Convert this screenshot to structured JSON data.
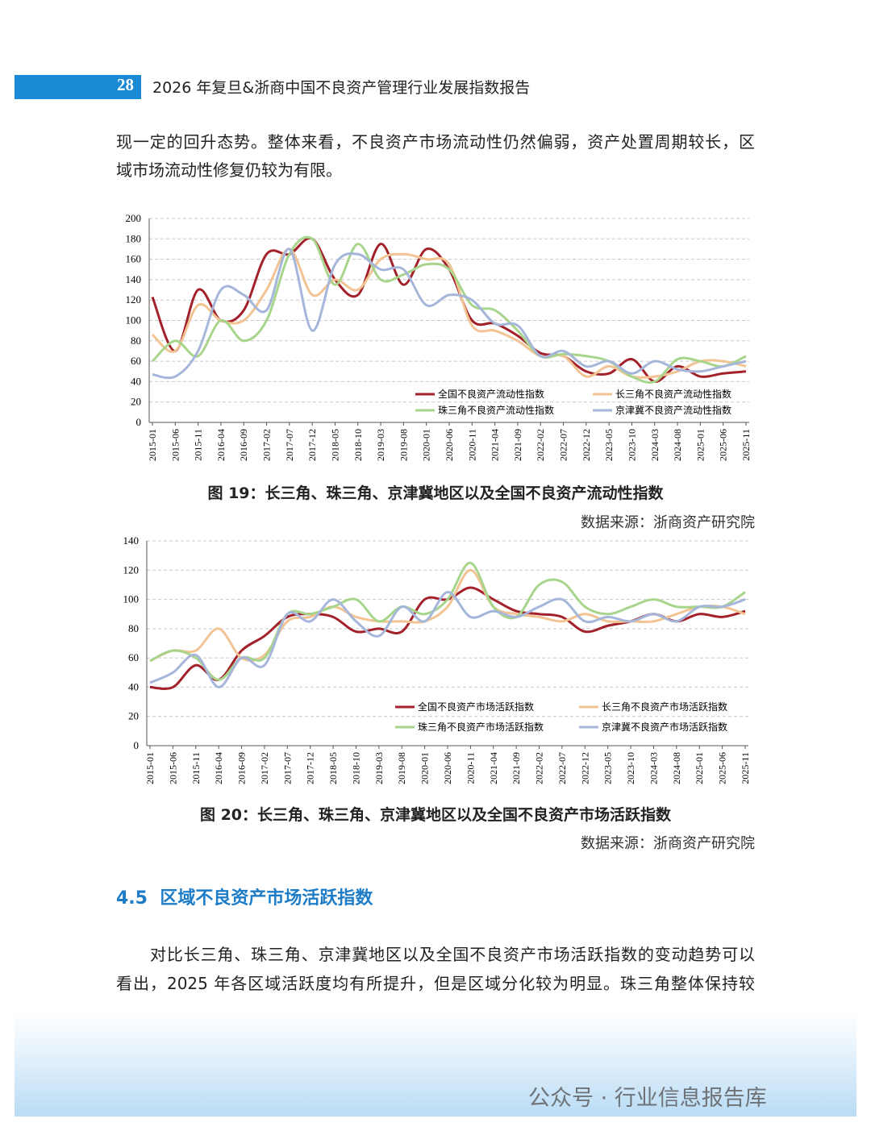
{
  "header": {
    "page_number": "28",
    "title": "2026 年复旦&浙商中国不良资产管理行业发展指数报告"
  },
  "paragraph_1": {
    "lines": [
      "现一定的回升态势。整体来看，不良资产市场流动性仍然偏弱，资产处置周期较长，区",
      "域市场流动性修复仍较为有限。"
    ]
  },
  "chart_data": [
    {
      "type": "line",
      "title": "图 19：长三角、珠三角、京津冀地区以及全国不良资产流动性指数",
      "source": "数据来源：浙商资产研究院",
      "categories": [
        "2015-01",
        "2015-06",
        "2015-11",
        "2016-04",
        "2016-09",
        "2017-02",
        "2017-07",
        "2017-12",
        "2018-05",
        "2018-10",
        "2019-03",
        "2019-08",
        "2020-01",
        "2020-06",
        "2020-11",
        "2021-04",
        "2021-09",
        "2022-02",
        "2022-07",
        "2022-12",
        "2023-05",
        "2023-10",
        "2024-03",
        "2024-08",
        "2025-01",
        "2025-06",
        "2025-11"
      ],
      "ylim": [
        0,
        200
      ],
      "yticks": [
        0,
        20,
        40,
        60,
        80,
        100,
        120,
        140,
        160,
        180,
        200
      ],
      "grid": true,
      "series": [
        {
          "name": "全国不良资产流动性指数",
          "color": "#a3212a",
          "values": [
            123,
            70,
            130,
            100,
            110,
            165,
            165,
            180,
            140,
            125,
            175,
            135,
            170,
            150,
            100,
            97,
            85,
            68,
            65,
            50,
            48,
            62,
            40,
            55,
            45,
            48,
            50
          ]
        },
        {
          "name": "长三角不良资产流动性指数",
          "color": "#f2c393",
          "values": [
            86,
            70,
            115,
            100,
            100,
            130,
            170,
            125,
            140,
            130,
            160,
            165,
            160,
            155,
            95,
            90,
            80,
            65,
            65,
            45,
            55,
            45,
            45,
            50,
            60,
            60,
            55
          ]
        },
        {
          "name": "珠三角不良资产流动性指数",
          "color": "#a8d58c",
          "values": [
            60,
            80,
            65,
            100,
            80,
            100,
            165,
            180,
            135,
            175,
            140,
            145,
            155,
            150,
            115,
            110,
            90,
            65,
            67,
            65,
            60,
            45,
            40,
            62,
            60,
            55,
            65
          ]
        },
        {
          "name": "京津冀不良资产流动性指数",
          "color": "#a5b6da",
          "values": [
            47,
            45,
            70,
            130,
            125,
            110,
            170,
            90,
            155,
            165,
            150,
            150,
            115,
            125,
            120,
            97,
            95,
            65,
            70,
            55,
            60,
            48,
            60,
            52,
            50,
            55,
            60
          ]
        }
      ]
    },
    {
      "type": "line",
      "title": "图 20：长三角、珠三角、京津冀地区以及全国不良资产市场活跃指数",
      "source": "数据来源：浙商资产研究院",
      "categories": [
        "2015-01",
        "2015-06",
        "2015-11",
        "2016-04",
        "2016-09",
        "2017-02",
        "2017-07",
        "2017-12",
        "2018-05",
        "2018-10",
        "2019-03",
        "2019-08",
        "2020-01",
        "2020-06",
        "2020-11",
        "2021-04",
        "2021-09",
        "2022-02",
        "2022-07",
        "2022-12",
        "2023-05",
        "2023-10",
        "2024-03",
        "2024-08",
        "2025-01",
        "2025-06",
        "2025-11"
      ],
      "ylim": [
        0,
        140
      ],
      "yticks": [
        0,
        20,
        40,
        60,
        80,
        100,
        120,
        140
      ],
      "grid": true,
      "series": [
        {
          "name": "全国不良资产市场活跃指数",
          "color": "#a3212a",
          "values": [
            40,
            40,
            55,
            45,
            65,
            75,
            88,
            90,
            88,
            78,
            80,
            78,
            100,
            100,
            108,
            100,
            92,
            90,
            88,
            78,
            82,
            85,
            90,
            85,
            90,
            88,
            92
          ]
        },
        {
          "name": "长三角不良资产市场活跃指数",
          "color": "#f2c393",
          "values": [
            58,
            65,
            65,
            80,
            60,
            62,
            85,
            88,
            95,
            88,
            85,
            85,
            85,
            95,
            120,
            95,
            90,
            88,
            85,
            90,
            85,
            85,
            85,
            90,
            95,
            95,
            90
          ]
        },
        {
          "name": "珠三角不良资产市场活跃指数",
          "color": "#a8d58c",
          "values": [
            58,
            65,
            60,
            45,
            60,
            60,
            90,
            90,
            95,
            100,
            85,
            95,
            90,
            100,
            125,
            95,
            88,
            110,
            112,
            95,
            90,
            95,
            100,
            95,
            95,
            95,
            105
          ]
        },
        {
          "name": "京津冀不良资产市场活跃指数",
          "color": "#a5b6da",
          "values": [
            43,
            50,
            62,
            40,
            60,
            55,
            90,
            85,
            100,
            85,
            75,
            95,
            85,
            105,
            88,
            92,
            88,
            95,
            100,
            85,
            88,
            85,
            90,
            85,
            95,
            95,
            100
          ]
        }
      ]
    }
  ],
  "section": {
    "number": "4.5",
    "title": "区域不良资产市场活跃指数"
  },
  "paragraph_2": {
    "lines": [
      "对比长三角、珠三角、京津冀地区以及全国不良资产市场活跃指数的变动趋势可以",
      "看出，2025 年各区域活跃度均有所提升，但是区域分化较为明显。珠三角整体保持较"
    ]
  },
  "watermark": "公众号 · 行业信息报告库"
}
